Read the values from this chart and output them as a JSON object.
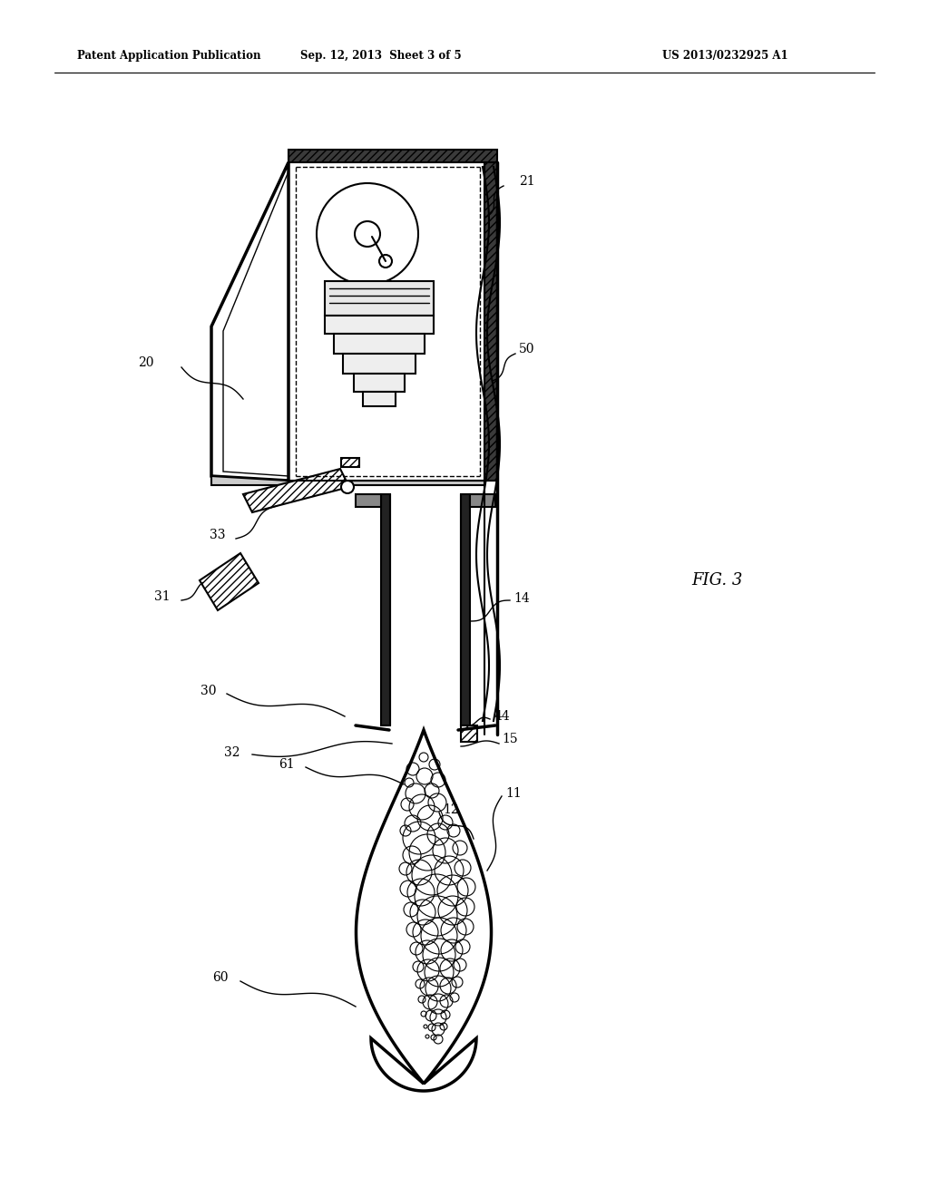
{
  "bg_color": "#ffffff",
  "lc": "#000000",
  "header_left": "Patent Application Publication",
  "header_center": "Sep. 12, 2013  Sheet 3 of 5",
  "header_right": "US 2013/0232925 A1",
  "fig_label": "FIG. 3"
}
